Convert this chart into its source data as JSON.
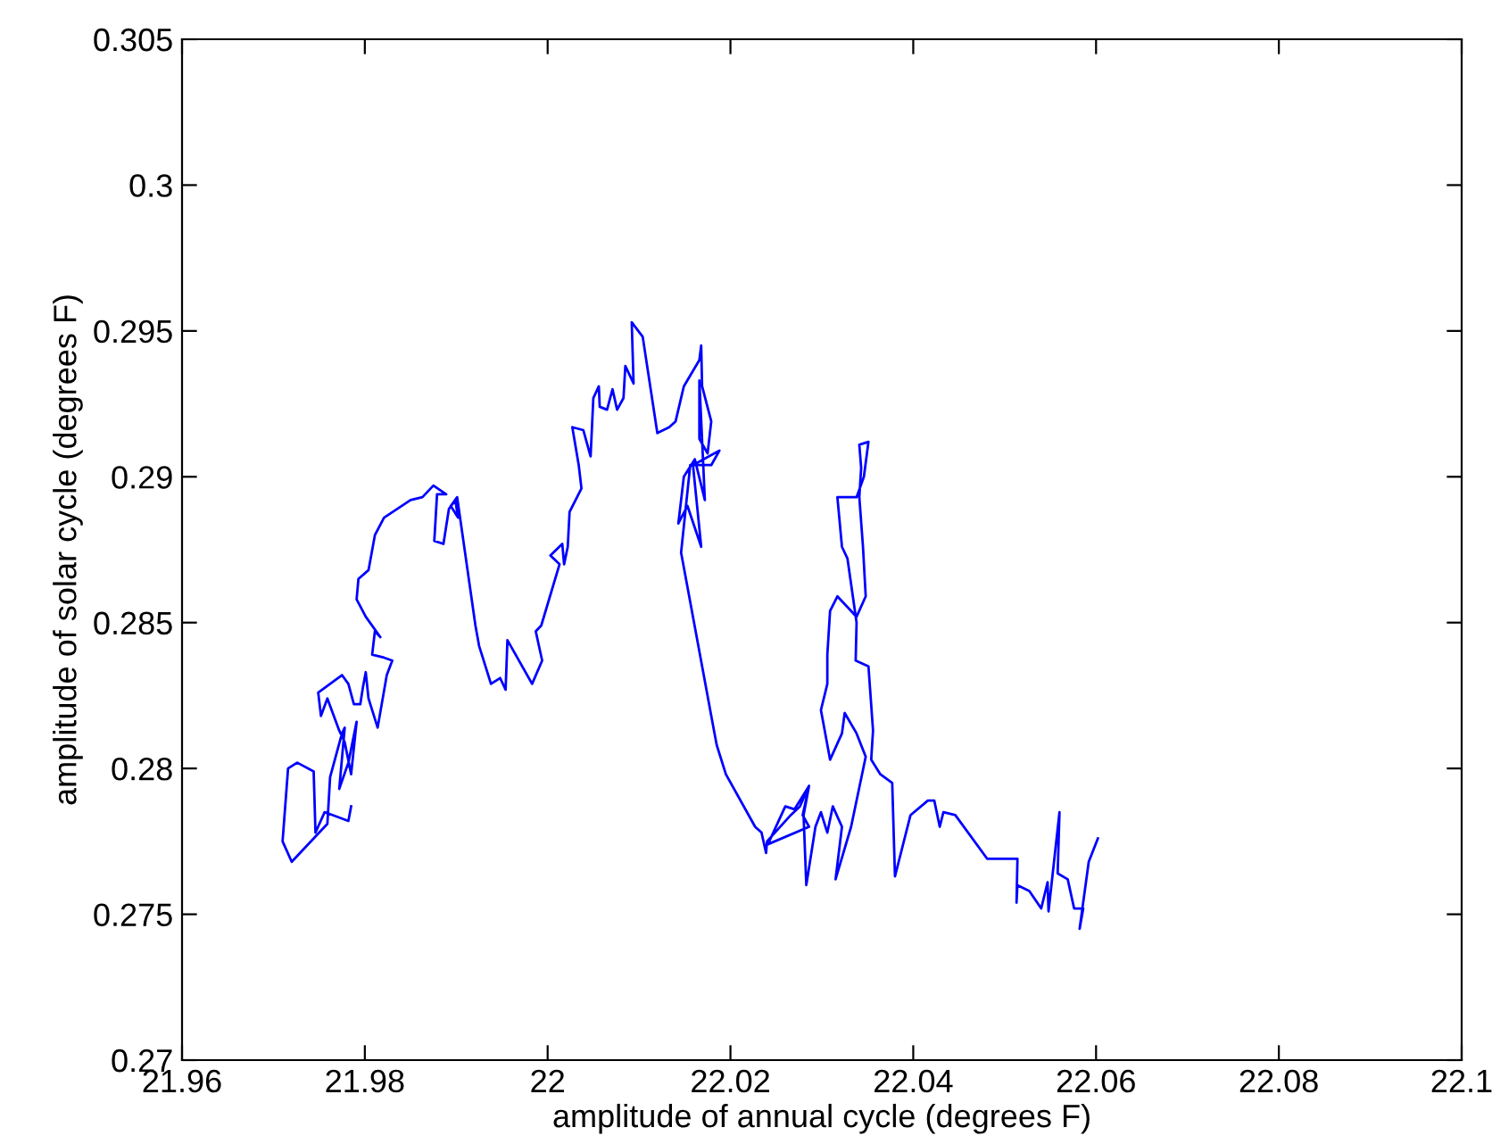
{
  "chart_data": {
    "type": "line",
    "xlabel": "amplitude of annual cycle (degrees F)",
    "ylabel": "amplitude of solar cycle (degrees F)",
    "xlim": [
      21.96,
      22.1
    ],
    "xticks": [
      21.96,
      21.98,
      22,
      22.02,
      22.04,
      22.06,
      22.08,
      22.1
    ],
    "ylim": [
      0.27,
      0.305
    ],
    "yticks": [
      0.27,
      0.275,
      0.28,
      0.285,
      0.29,
      0.295,
      0.3,
      0.305
    ],
    "grid": false,
    "marker": "none",
    "line_style": "solid",
    "series": [
      {
        "color": "#0000ff",
        "x": [
          21.9785,
          21.9782,
          21.9765,
          21.9756,
          21.9746,
          21.9744,
          21.9726,
          21.9716,
          21.971,
          21.972,
          21.9759,
          21.9762,
          21.9775,
          21.9778,
          21.9772,
          21.9782,
          21.9791,
          21.9785,
          21.9778,
          21.9772,
          21.9759,
          21.9752,
          21.9749,
          21.9775,
          21.9782,
          21.9788,
          21.9795,
          21.9798,
          21.9801,
          21.9804,
          21.9814,
          21.9824,
          21.983,
          21.9821,
          21.9808,
          21.9811,
          21.9817,
          21.9801,
          21.9791,
          21.9793,
          21.9804,
          21.9811,
          21.9821,
          21.985,
          21.9863,
          21.9875,
          21.9889,
          21.9879,
          21.9876,
          21.9886,
          21.9892,
          21.9899,
          21.9902,
          21.9894,
          21.9901,
          21.9921,
          21.9925,
          21.9928,
          21.9938,
          21.9948,
          21.9954,
          21.9956,
          21.9983,
          21.9994,
          21.9987,
          21.9993,
          22.0013,
          22.0003,
          22.0016,
          22.0018,
          22.0022,
          22.0024,
          22.0037,
          22.0034,
          22.0027,
          22.0039,
          22.0047,
          22.005,
          22.0056,
          22.0057,
          22.0065,
          22.0071,
          22.0076,
          22.0083,
          22.0085,
          22.0094,
          22.0092,
          22.0104,
          22.012,
          22.0133,
          22.014,
          22.0149,
          22.0166,
          22.0168,
          22.0169,
          22.0179,
          22.0175,
          22.0166,
          22.0166,
          22.0172,
          22.0161,
          22.0149,
          22.0143,
          22.0153,
          22.0168,
          22.0159,
          22.0188,
          22.0179,
          22.0156,
          22.0146,
          22.0182,
          22.0185,
          22.0195,
          22.0227,
          22.0234,
          22.0239,
          22.024,
          22.0266,
          22.0276,
          22.0286,
          22.0279,
          22.0286,
          22.0241,
          22.026,
          22.027,
          22.0286,
          22.028,
          22.0283,
          22.0293,
          22.0299,
          22.0306,
          22.0312,
          22.0322,
          22.0315,
          22.0332,
          22.0348,
          22.0338,
          22.0325,
          22.0322,
          22.0309,
          22.0299,
          22.0306,
          22.0306,
          22.0309,
          22.0317,
          22.0338,
          22.0348,
          22.0345,
          22.0341,
          22.0343,
          22.0341,
          22.0351,
          22.0346,
          22.0338,
          22.0317,
          22.0322,
          22.0328,
          22.0338,
          22.0337,
          22.0351,
          22.0356,
          22.0354,
          22.0364,
          22.0377,
          22.038,
          22.0397,
          22.0416,
          22.0423,
          22.0429,
          22.0433,
          22.0446,
          22.0481,
          22.0514,
          22.0513,
          22.0514,
          22.0527,
          22.054,
          22.0547,
          22.0548,
          22.056,
          22.0558,
          22.0569,
          22.0576,
          22.0586,
          22.0582,
          22.0592,
          22.0602
        ],
        "values": [
          0.2787,
          0.2782,
          0.2784,
          0.2785,
          0.2778,
          0.2799,
          0.2802,
          0.28,
          0.2775,
          0.2768,
          0.2781,
          0.2797,
          0.2812,
          0.2814,
          0.2793,
          0.2802,
          0.2816,
          0.2798,
          0.2809,
          0.2813,
          0.2824,
          0.2818,
          0.2826,
          0.2832,
          0.2829,
          0.2822,
          0.2822,
          0.2828,
          0.2833,
          0.2824,
          0.2814,
          0.2832,
          0.2837,
          0.2838,
          0.2839,
          0.2847,
          0.2845,
          0.2852,
          0.2858,
          0.2865,
          0.2868,
          0.288,
          0.2886,
          0.2892,
          0.2893,
          0.2897,
          0.2894,
          0.2894,
          0.2878,
          0.2877,
          0.2889,
          0.2892,
          0.2886,
          0.289,
          0.2893,
          0.2849,
          0.2842,
          0.2839,
          0.2829,
          0.2831,
          0.2827,
          0.2844,
          0.2829,
          0.2837,
          0.2847,
          0.2849,
          0.287,
          0.2873,
          0.2877,
          0.287,
          0.2876,
          0.2888,
          0.2896,
          0.2904,
          0.2917,
          0.2916,
          0.2907,
          0.2927,
          0.2931,
          0.2924,
          0.2923,
          0.293,
          0.2923,
          0.2927,
          0.2938,
          0.2932,
          0.2953,
          0.2948,
          0.2915,
          0.2917,
          0.2919,
          0.2931,
          0.294,
          0.2945,
          0.2931,
          0.2919,
          0.2908,
          0.2913,
          0.2933,
          0.2892,
          0.2906,
          0.29,
          0.2884,
          0.289,
          0.2876,
          0.2904,
          0.2909,
          0.2904,
          0.2904,
          0.2874,
          0.2813,
          0.2808,
          0.2798,
          0.278,
          0.2778,
          0.2771,
          0.2775,
          0.2784,
          0.2787,
          0.2794,
          0.2784,
          0.278,
          0.2774,
          0.2787,
          0.2786,
          0.2794,
          0.2784,
          0.276,
          0.278,
          0.2785,
          0.2778,
          0.2787,
          0.278,
          0.2762,
          0.278,
          0.2804,
          0.2812,
          0.2819,
          0.2812,
          0.2803,
          0.282,
          0.2829,
          0.2839,
          0.2854,
          0.2859,
          0.2852,
          0.2859,
          0.2876,
          0.2893,
          0.2903,
          0.2911,
          0.2912,
          0.29,
          0.2893,
          0.2893,
          0.2876,
          0.2872,
          0.285,
          0.2837,
          0.2835,
          0.2813,
          0.2803,
          0.2798,
          0.2795,
          0.2763,
          0.2784,
          0.2789,
          0.2789,
          0.278,
          0.2785,
          0.2784,
          0.2769,
          0.2769,
          0.2754,
          0.276,
          0.2758,
          0.2752,
          0.2761,
          0.2751,
          0.2785,
          0.2764,
          0.2762,
          0.2752,
          0.2752,
          0.2745,
          0.2768,
          0.2776
        ]
      }
    ]
  }
}
